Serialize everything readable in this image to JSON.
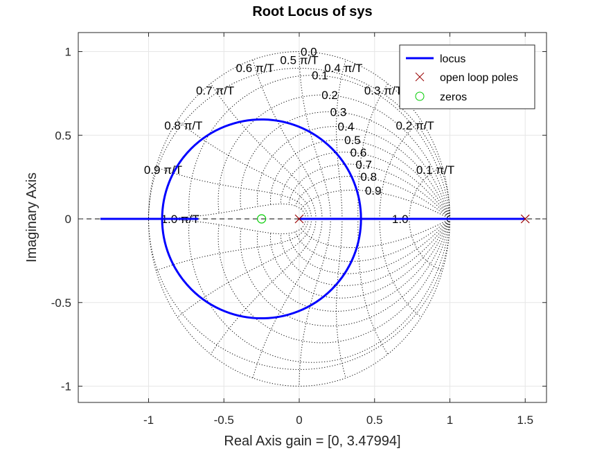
{
  "chart_data": {
    "type": "scatter",
    "title": "Root Locus of sys",
    "xlabel": "Real Axis     gain = [0, 3.47994]",
    "ylabel": "Imaginary Axis",
    "xlim": [
      -1.45,
      1.65
    ],
    "ylim": [
      -1.1,
      1.1
    ],
    "xticks": [
      -1,
      -0.5,
      0,
      0.5,
      1,
      1.5
    ],
    "xtick_labels": [
      "-1",
      "-0.5",
      "0",
      "0.5",
      "1",
      "1.5"
    ],
    "yticks": [
      -1,
      -0.5,
      0,
      0.5,
      1
    ],
    "ytick_labels": [
      "-1",
      "-0.5",
      "0",
      "0.5",
      "1"
    ],
    "grid": true,
    "legend_position": "top-right",
    "series": [
      {
        "name": "locus",
        "color": "#0000ff",
        "kind": "line",
        "segments": [
          {
            "type": "real_axis",
            "x": [
              -1.32,
              -0.67
            ],
            "y": [
              0,
              0
            ]
          },
          {
            "type": "real_axis",
            "x": [
              0,
              1.5
            ],
            "y": [
              0,
              0
            ]
          },
          {
            "type": "circle",
            "center": [
              -0.25,
              0
            ],
            "radius": 0.66
          }
        ]
      },
      {
        "name": "open loop poles",
        "color": "#990000",
        "kind": "x_marker",
        "x": [
          0,
          1.5
        ],
        "y": [
          0,
          0
        ]
      },
      {
        "name": "zeros",
        "color": "#00cc00",
        "kind": "o_marker",
        "x": [
          -0.25
        ],
        "y": [
          0
        ]
      }
    ],
    "damping_labels": [
      "0.0",
      "0.1",
      "0.2",
      "0.3",
      "0.4",
      "0.5",
      "0.6",
      "0.7",
      "0.8",
      "0.9",
      "1.0"
    ],
    "natural_frequency_labels": [
      "0.1 π/T",
      "0.2 π/T",
      "0.3 π/T",
      "0.4 π/T",
      "0.5 π/T",
      "0.6 π/T",
      "0.7 π/T",
      "0.8 π/T",
      "0.9 π/T",
      "1.0 π/T"
    ]
  }
}
